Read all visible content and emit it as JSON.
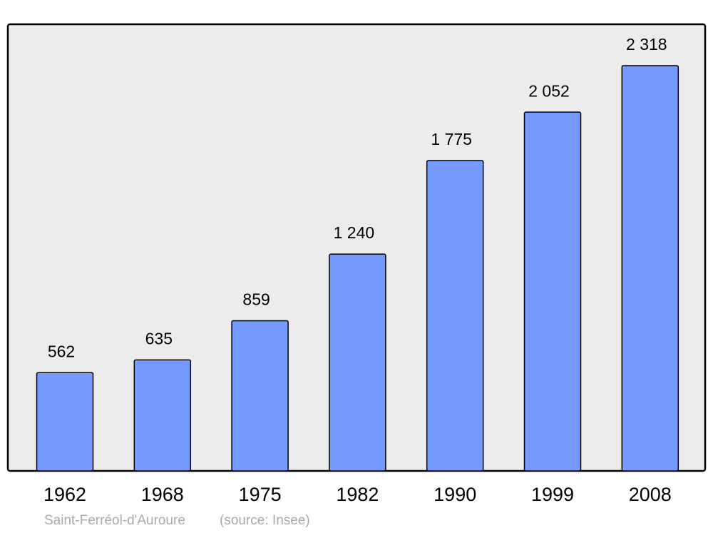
{
  "chart_data": {
    "type": "bar",
    "categories": [
      "1962",
      "1968",
      "1975",
      "1982",
      "1990",
      "1999",
      "2008"
    ],
    "values": [
      562,
      635,
      859,
      1240,
      1775,
      2052,
      2318
    ],
    "value_labels": [
      "562",
      "635",
      "859",
      "1 240",
      "1 775",
      "2 052",
      "2 318"
    ],
    "color": "#7499ff",
    "caption": "Saint-Ferréol-d'Auroure",
    "source": "(source: Insee)"
  }
}
